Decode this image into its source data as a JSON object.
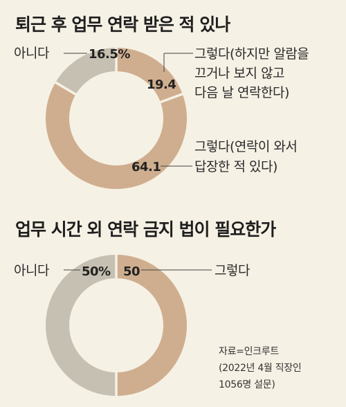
{
  "source": [
    "자료=인크루트",
    "(2022년 4월 직장인",
    "1056명 설문)"
  ],
  "colors": {
    "tan": "#cfae8f",
    "gray": "#c6c0b2",
    "background": "#f6f1e5",
    "separator": "#f6f1e5"
  },
  "chart_data": [
    {
      "type": "pie",
      "title": "퇴근 후 업무 연락 받은 적 있나",
      "donut": true,
      "slices": [
        {
          "label": "아니다",
          "value": 16.5,
          "value_label": "16.5%",
          "color": "#c6c0b2"
        },
        {
          "label": [
            "그렇다(하지만 알람을",
            "끄거나 보지 않고",
            "다음 날 연락한다)"
          ],
          "value": 19.4,
          "value_label": "19.4",
          "color": "#cfae8f"
        },
        {
          "label": [
            "그렇다(연락이 와서",
            "답장한 적 있다)"
          ],
          "value": 64.1,
          "value_label": "64.1",
          "color": "#cfae8f"
        }
      ]
    },
    {
      "type": "pie",
      "title": "업무 시간 외 연락 금지 법이 필요한가",
      "donut": true,
      "slices": [
        {
          "label": "그렇다",
          "value": 50,
          "value_label": "50",
          "color": "#cfae8f"
        },
        {
          "label": "아니다",
          "value": 50,
          "value_label": "50%",
          "color": "#c6c0b2"
        }
      ]
    }
  ]
}
